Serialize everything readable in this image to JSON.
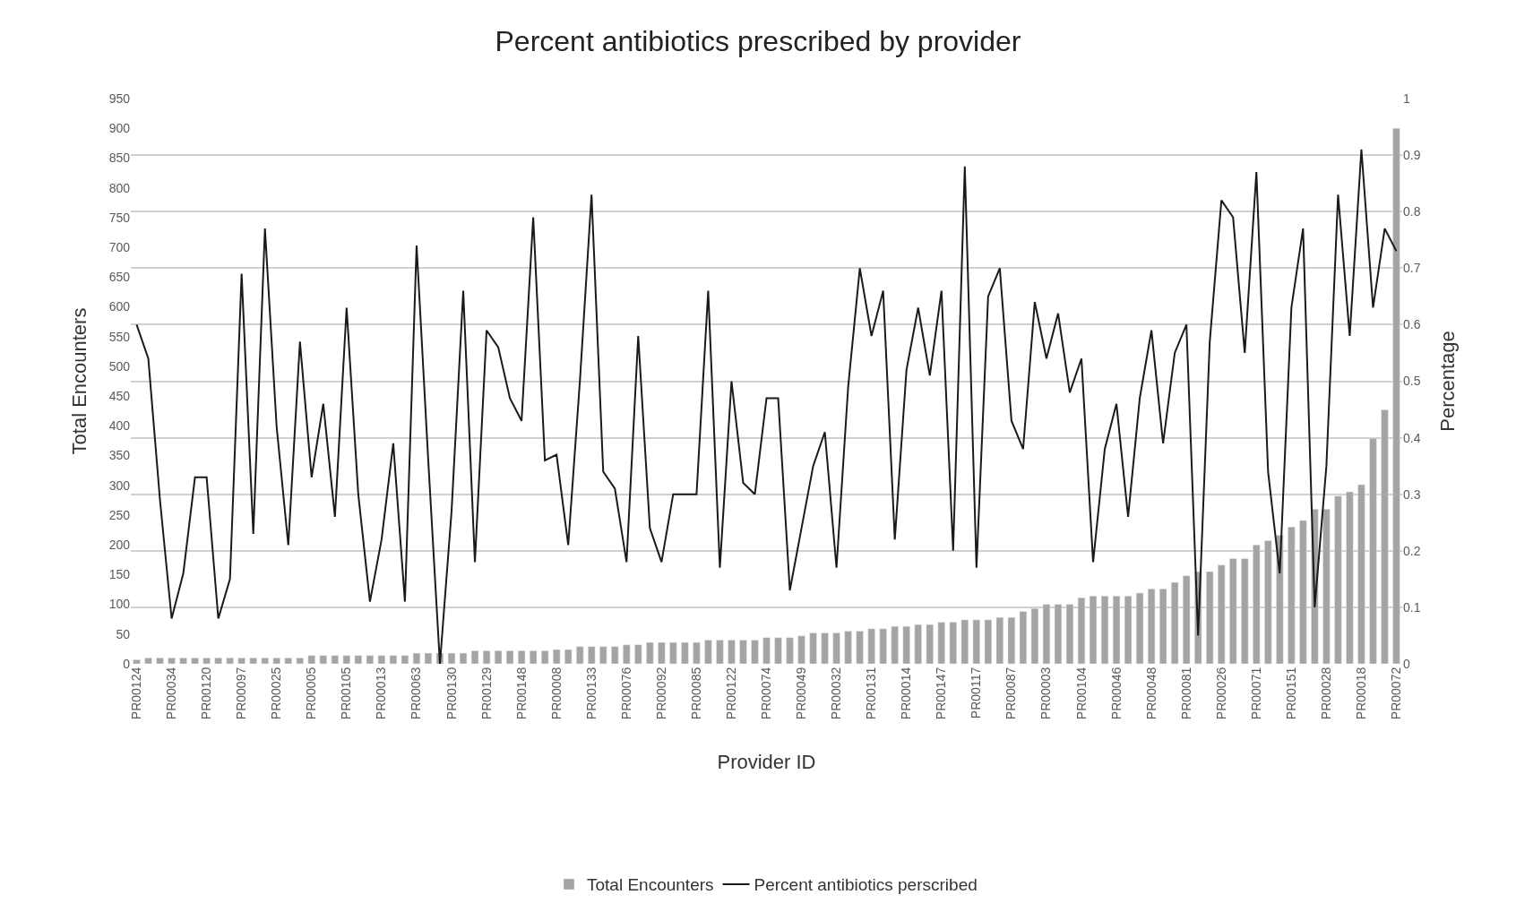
{
  "chart_data": {
    "type": "bar",
    "title": "Percent antibiotics prescribed by provider",
    "xlabel": "Provider ID",
    "ylabel": "Total Encounters",
    "y2label": "Percentage",
    "categories": [
      "PR00124",
      null,
      null,
      "PR00034",
      null,
      null,
      "PR00120",
      null,
      null,
      "PR00097",
      null,
      null,
      "PR00025",
      null,
      null,
      "PR00005",
      null,
      null,
      "PR00105",
      null,
      null,
      "PR00013",
      null,
      null,
      "PR00063",
      null,
      null,
      "PR00130",
      null,
      null,
      "PR00129",
      null,
      null,
      "PR00148",
      null,
      null,
      "PR00008",
      null,
      null,
      "PR00133",
      null,
      null,
      "PR00076",
      null,
      null,
      "PR00092",
      null,
      null,
      "PR00085",
      null,
      null,
      "PR00122",
      null,
      null,
      "PR00074",
      null,
      null,
      "PR00049",
      null,
      null,
      "PR00032",
      null,
      null,
      "PR00131",
      null,
      null,
      "PR00014",
      null,
      null,
      "PR00147",
      null,
      null,
      "PR00117",
      null,
      null,
      "PR00087",
      null,
      null,
      "PR00003",
      null,
      null,
      "PR00104",
      null,
      null,
      "PR00046",
      null,
      null,
      "PR00048",
      null,
      null,
      "PR00081",
      null,
      null,
      "PR00026",
      null,
      null,
      "PR00071",
      null,
      null,
      "PR00151",
      null,
      null,
      "PR00028",
      null,
      null,
      "PR00018",
      null,
      null,
      "PR00072"
    ],
    "series": [
      {
        "name": "Total Encounters",
        "color": "#a5a3a3",
        "values": [
          7,
          10,
          10,
          10,
          10,
          10,
          10,
          10,
          10,
          10,
          10,
          10,
          10,
          10,
          10,
          14,
          14,
          14,
          14,
          14,
          14,
          14,
          14,
          14,
          18,
          18,
          18,
          18,
          18,
          22,
          22,
          22,
          22,
          22,
          22,
          22,
          24,
          24,
          29,
          29,
          29,
          29,
          32,
          32,
          36,
          36,
          36,
          36,
          36,
          40,
          40,
          40,
          40,
          40,
          44,
          44,
          44,
          47,
          52,
          52,
          52,
          55,
          55,
          59,
          59,
          63,
          63,
          66,
          66,
          70,
          70,
          74,
          74,
          74,
          78,
          78,
          88,
          93,
          100,
          100,
          100,
          111,
          114,
          114,
          114,
          114,
          119,
          126,
          126,
          137,
          148,
          155,
          155,
          166,
          177,
          177,
          200,
          207,
          216,
          230,
          241,
          260,
          260,
          282,
          289,
          301,
          379,
          427,
          900
        ]
      },
      {
        "name": "Percent antibiotics perscribed",
        "type": "line",
        "axis": "y2",
        "color": "#1a1a1a",
        "values": [
          0.6,
          0.54,
          0.29,
          0.08,
          0.16,
          0.33,
          0.33,
          0.08,
          0.15,
          0.69,
          0.23,
          0.77,
          0.42,
          0.21,
          0.57,
          0.33,
          0.46,
          0.26,
          0.63,
          0.3,
          0.11,
          0.22,
          0.39,
          0.11,
          0.74,
          0.36,
          0.0,
          0.27,
          0.66,
          0.18,
          0.59,
          0.56,
          0.47,
          0.43,
          0.79,
          0.36,
          0.37,
          0.21,
          0.5,
          0.83,
          0.34,
          0.31,
          0.18,
          0.58,
          0.24,
          0.18,
          0.3,
          0.3,
          0.3,
          0.66,
          0.17,
          0.5,
          0.32,
          0.3,
          0.47,
          0.47,
          0.13,
          0.24,
          0.35,
          0.41,
          0.17,
          0.49,
          0.7,
          0.58,
          0.66,
          0.22,
          0.52,
          0.63,
          0.51,
          0.66,
          0.2,
          0.88,
          0.17,
          0.65,
          0.7,
          0.43,
          0.38,
          0.64,
          0.54,
          0.62,
          0.48,
          0.54,
          0.18,
          0.38,
          0.46,
          0.26,
          0.47,
          0.59,
          0.39,
          0.55,
          0.6,
          0.05,
          0.57,
          0.82,
          0.79,
          0.55,
          0.87,
          0.34,
          0.16,
          0.63,
          0.77,
          0.1,
          0.35,
          0.83,
          0.58,
          0.91,
          0.63,
          0.77,
          0.73
        ]
      }
    ],
    "ylim": [
      0,
      950
    ],
    "yticks": [
      0,
      50,
      100,
      150,
      200,
      250,
      300,
      350,
      400,
      450,
      500,
      550,
      600,
      650,
      700,
      750,
      800,
      850,
      900,
      950
    ],
    "y2lim": [
      0,
      1
    ],
    "y2ticks": [
      0,
      0.1,
      0.2,
      0.3,
      0.4,
      0.5,
      0.6,
      0.7,
      0.8,
      0.9,
      1
    ],
    "grid": true,
    "legend": "bottom",
    "line_style": "solid",
    "marker": "none"
  }
}
